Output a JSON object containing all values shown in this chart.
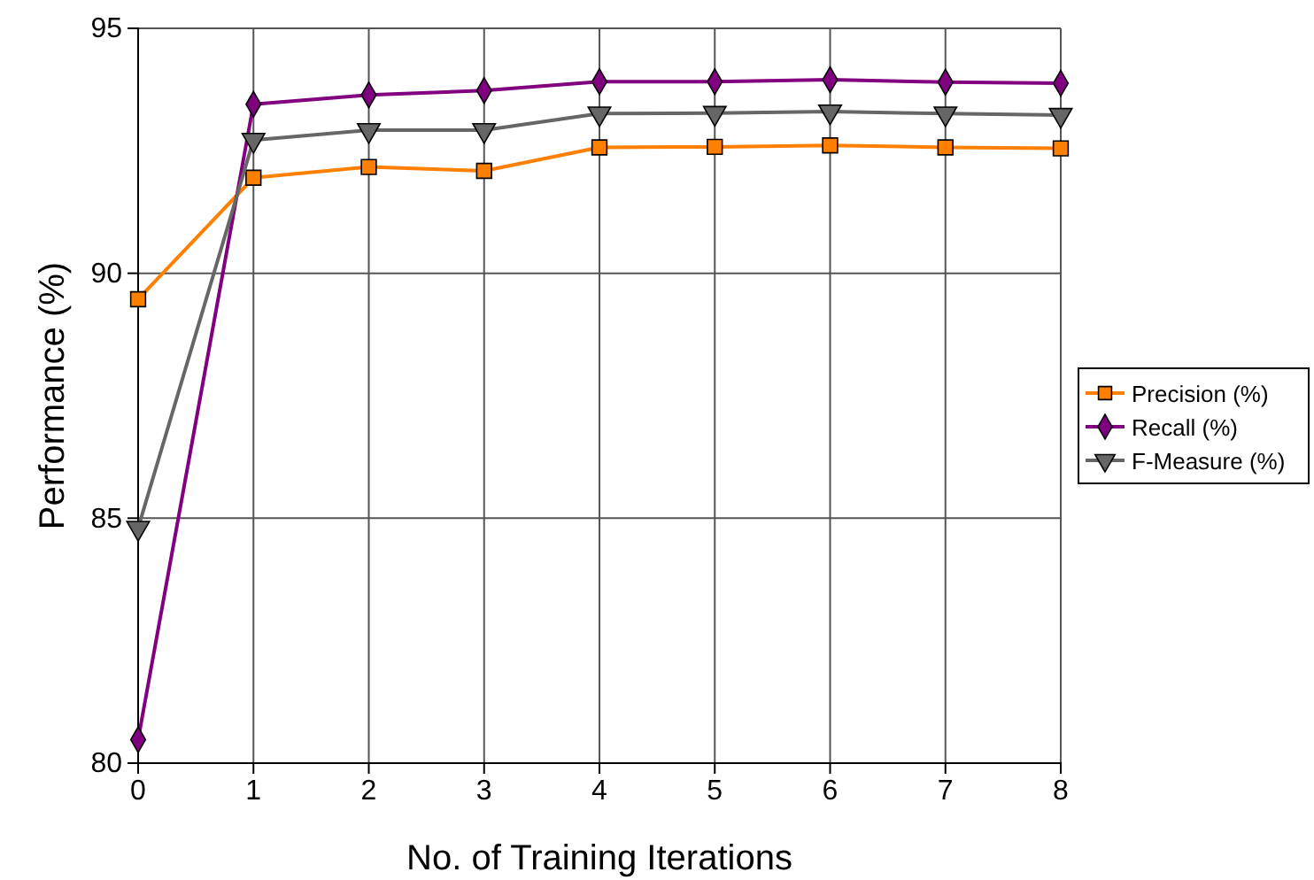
{
  "chart_data": {
    "type": "line",
    "xlabel": "No. of Training Iterations",
    "ylabel": "Performance (%)",
    "x": [
      0,
      1,
      2,
      3,
      4,
      5,
      6,
      7,
      8
    ],
    "xlim": [
      0,
      8
    ],
    "xticks": [
      0,
      1,
      2,
      3,
      4,
      5,
      6,
      7,
      8
    ],
    "ylim": [
      80,
      95
    ],
    "yticks": [
      80,
      85,
      90,
      95
    ],
    "grid": true,
    "legend": "right",
    "series": [
      {
        "name": "Precision (%)",
        "color": "#ff7f00",
        "marker": "square",
        "values": [
          89.47,
          91.95,
          92.17,
          92.09,
          92.57,
          92.58,
          92.61,
          92.57,
          92.55
        ]
      },
      {
        "name": "Recall (%)",
        "color": "#800080",
        "marker": "diamond",
        "values": [
          80.48,
          93.45,
          93.64,
          93.73,
          93.91,
          93.91,
          93.95,
          93.9,
          93.88
        ]
      },
      {
        "name": "F-Measure (%)",
        "color": "#666666",
        "marker": "triangle",
        "values": [
          84.8,
          92.72,
          92.92,
          92.92,
          93.26,
          93.27,
          93.3,
          93.26,
          93.23
        ]
      }
    ]
  }
}
